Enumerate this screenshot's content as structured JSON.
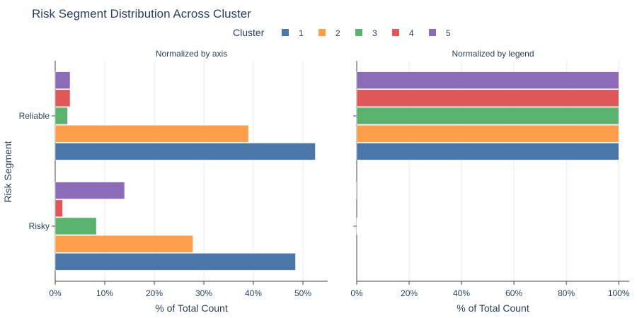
{
  "chart_data": {
    "title": "Risk Segment Distribution Across Cluster",
    "legend": {
      "title": "Cluster",
      "position": "top-center",
      "entries": [
        {
          "name": "1",
          "color": "#4a76a8"
        },
        {
          "name": "2",
          "color": "#ff9e4a"
        },
        {
          "name": "3",
          "color": "#59b36e"
        },
        {
          "name": "4",
          "color": "#e15759"
        },
        {
          "name": "5",
          "color": "#8c6bb8"
        }
      ]
    },
    "ylabel": "Risk Segment",
    "categories": [
      "Reliable",
      "Risky"
    ],
    "panels": [
      {
        "type": "bar",
        "orientation": "horizontal",
        "subtitle": "Normalized by axis",
        "xlabel": "% of Total Count",
        "xlim": [
          0,
          55
        ],
        "xticks": [
          0,
          10,
          20,
          30,
          40,
          50
        ],
        "xtick_labels": [
          "0%",
          "10%",
          "20%",
          "30%",
          "40%",
          "50%"
        ],
        "series": [
          {
            "name": "1",
            "values": [
              52.5,
              48.5
            ]
          },
          {
            "name": "2",
            "values": [
              39,
              27.8
            ]
          },
          {
            "name": "3",
            "values": [
              2.5,
              8.3
            ]
          },
          {
            "name": "4",
            "values": [
              3,
              1.5
            ]
          },
          {
            "name": "5",
            "values": [
              3,
              14
            ]
          }
        ]
      },
      {
        "type": "bar",
        "orientation": "horizontal",
        "subtitle": "Normalized by legend",
        "xlabel": "% of Total Count",
        "xlim": [
          0,
          104
        ],
        "xticks": [
          0,
          20,
          40,
          60,
          80,
          100
        ],
        "xtick_labels": [
          "0%",
          "20%",
          "40%",
          "60%",
          "80%",
          "100%"
        ],
        "series": [
          {
            "name": "1",
            "values": [
              100,
              0
            ]
          },
          {
            "name": "2",
            "values": [
              100,
              0
            ]
          },
          {
            "name": "3",
            "values": [
              100,
              0.1
            ]
          },
          {
            "name": "4",
            "values": [
              100,
              0
            ]
          },
          {
            "name": "5",
            "values": [
              100,
              0.3
            ]
          }
        ]
      }
    ]
  }
}
